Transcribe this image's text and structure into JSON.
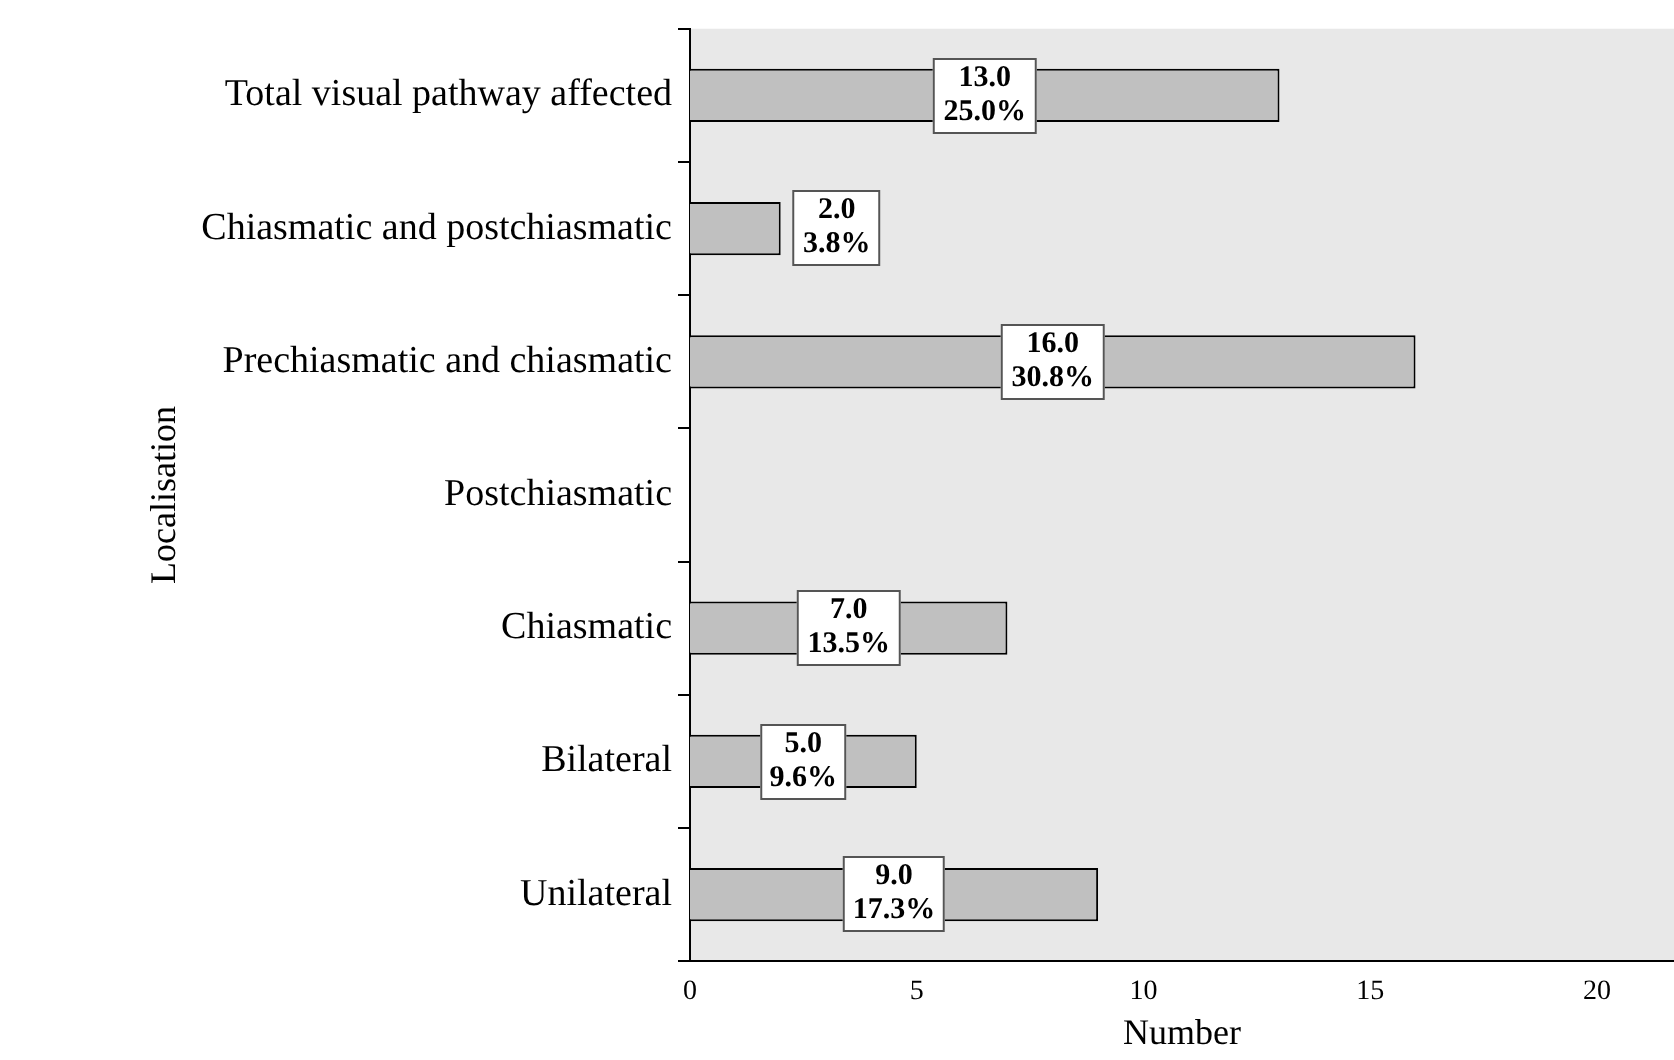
{
  "chart_data": {
    "type": "bar",
    "orientation": "horizontal",
    "xlabel": "Number",
    "ylabel": "Localisation",
    "categories": [
      "Total visual pathway affected",
      "Chiasmatic and postchiasmatic",
      "Prechiasmatic and chiasmatic",
      "Postchiasmatic",
      "Chiasmatic",
      "Bilateral",
      "Unilateral"
    ],
    "values": [
      13,
      2,
      16,
      0,
      7,
      5,
      9
    ],
    "value_labels": [
      "13.0\n25.0%",
      "2.0\n3.8%",
      "16.0\n30.8%",
      null,
      "7.0\n13.5%",
      "5.0\n9.6%",
      "9.0\n17.3%"
    ],
    "color": "#c0c0c0",
    "xlim": [
      0,
      21.7
    ],
    "xticks": [
      0,
      5,
      10,
      15,
      20
    ],
    "grid": false,
    "legend": false
  }
}
